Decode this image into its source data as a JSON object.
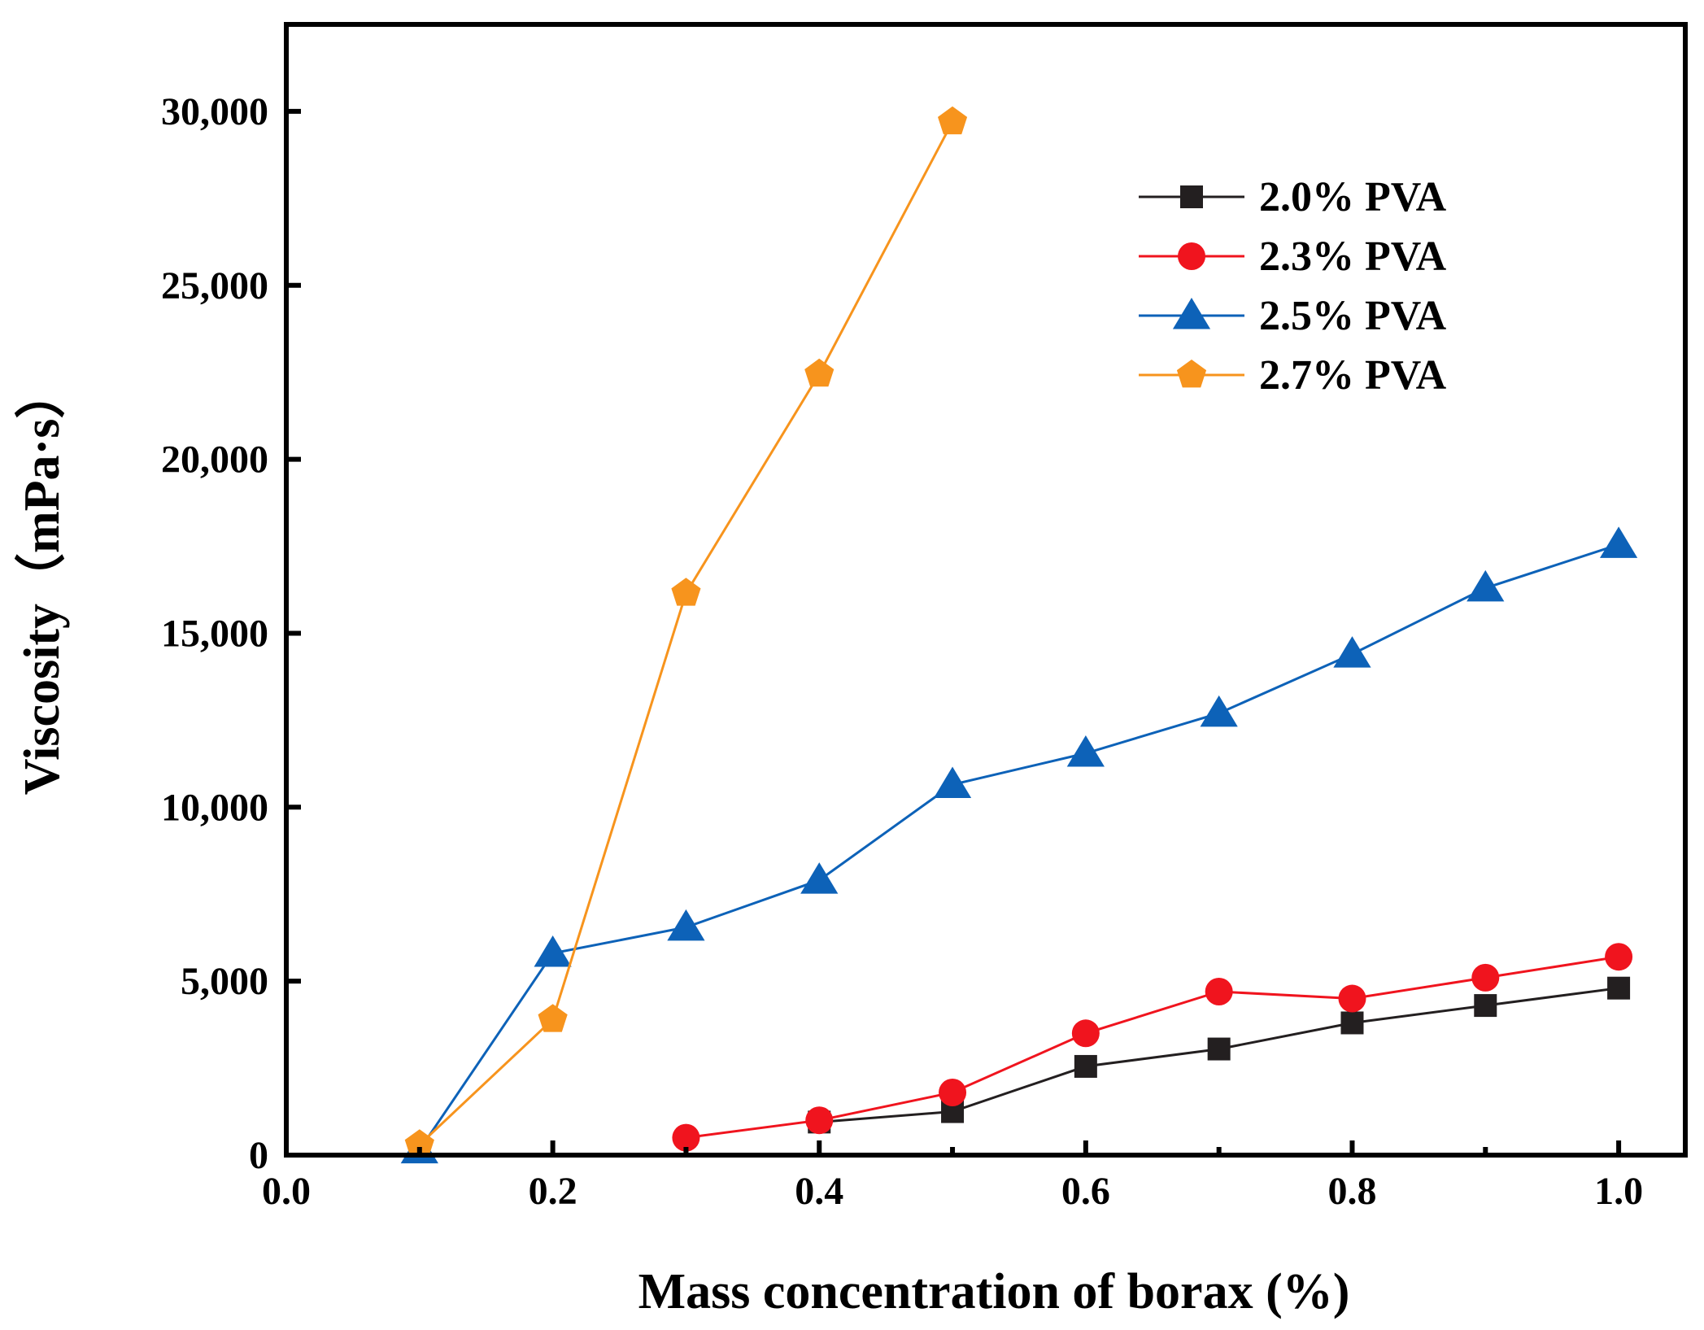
{
  "chart_data": {
    "type": "line",
    "title": "",
    "xlabel": "Mass concentration of borax (%)",
    "ylabel": "Viscosity（mPa·s）",
    "xlim": [
      0.0,
      1.05
    ],
    "ylim": [
      0,
      32500
    ],
    "x_ticks": [
      0.0,
      0.2,
      0.4,
      0.6,
      0.8,
      1.0
    ],
    "x_tick_labels": [
      "0.0",
      "0.2",
      "0.4",
      "0.6",
      "0.8",
      "1.0"
    ],
    "y_ticks": [
      0,
      5000,
      10000,
      15000,
      20000,
      25000,
      30000
    ],
    "y_tick_labels": [
      "0",
      "5,000",
      "10,000",
      "15,000",
      "20,000",
      "25,000",
      "30,000"
    ],
    "grid": false,
    "legend_position": "top-right",
    "series": [
      {
        "name": "2.0% PVA",
        "color": "#231f20",
        "marker": "square",
        "x": [
          0.4,
          0.5,
          0.6,
          0.7,
          0.8,
          0.9,
          1.0
        ],
        "values": [
          950,
          1250,
          2550,
          3050,
          3800,
          4300,
          4800
        ]
      },
      {
        "name": "2.3% PVA",
        "color": "#f0141e",
        "marker": "circle",
        "x": [
          0.3,
          0.4,
          0.5,
          0.6,
          0.7,
          0.8,
          0.9,
          1.0
        ],
        "values": [
          500,
          1000,
          1800,
          3500,
          4700,
          4500,
          5100,
          5700
        ]
      },
      {
        "name": "2.5% PVA",
        "color": "#0d62b8",
        "marker": "triangle",
        "x": [
          0.1,
          0.2,
          0.3,
          0.4,
          0.5,
          0.6,
          0.7,
          0.8,
          0.9,
          1.0
        ],
        "values": [
          150,
          5800,
          6550,
          7900,
          10650,
          11550,
          12700,
          14400,
          16300,
          17550
        ]
      },
      {
        "name": "2.7% PVA",
        "color": "#f7941d",
        "marker": "pentagon",
        "x": [
          0.1,
          0.2,
          0.3,
          0.4,
          0.5
        ],
        "values": [
          300,
          3900,
          16150,
          22450,
          29700
        ]
      }
    ]
  }
}
